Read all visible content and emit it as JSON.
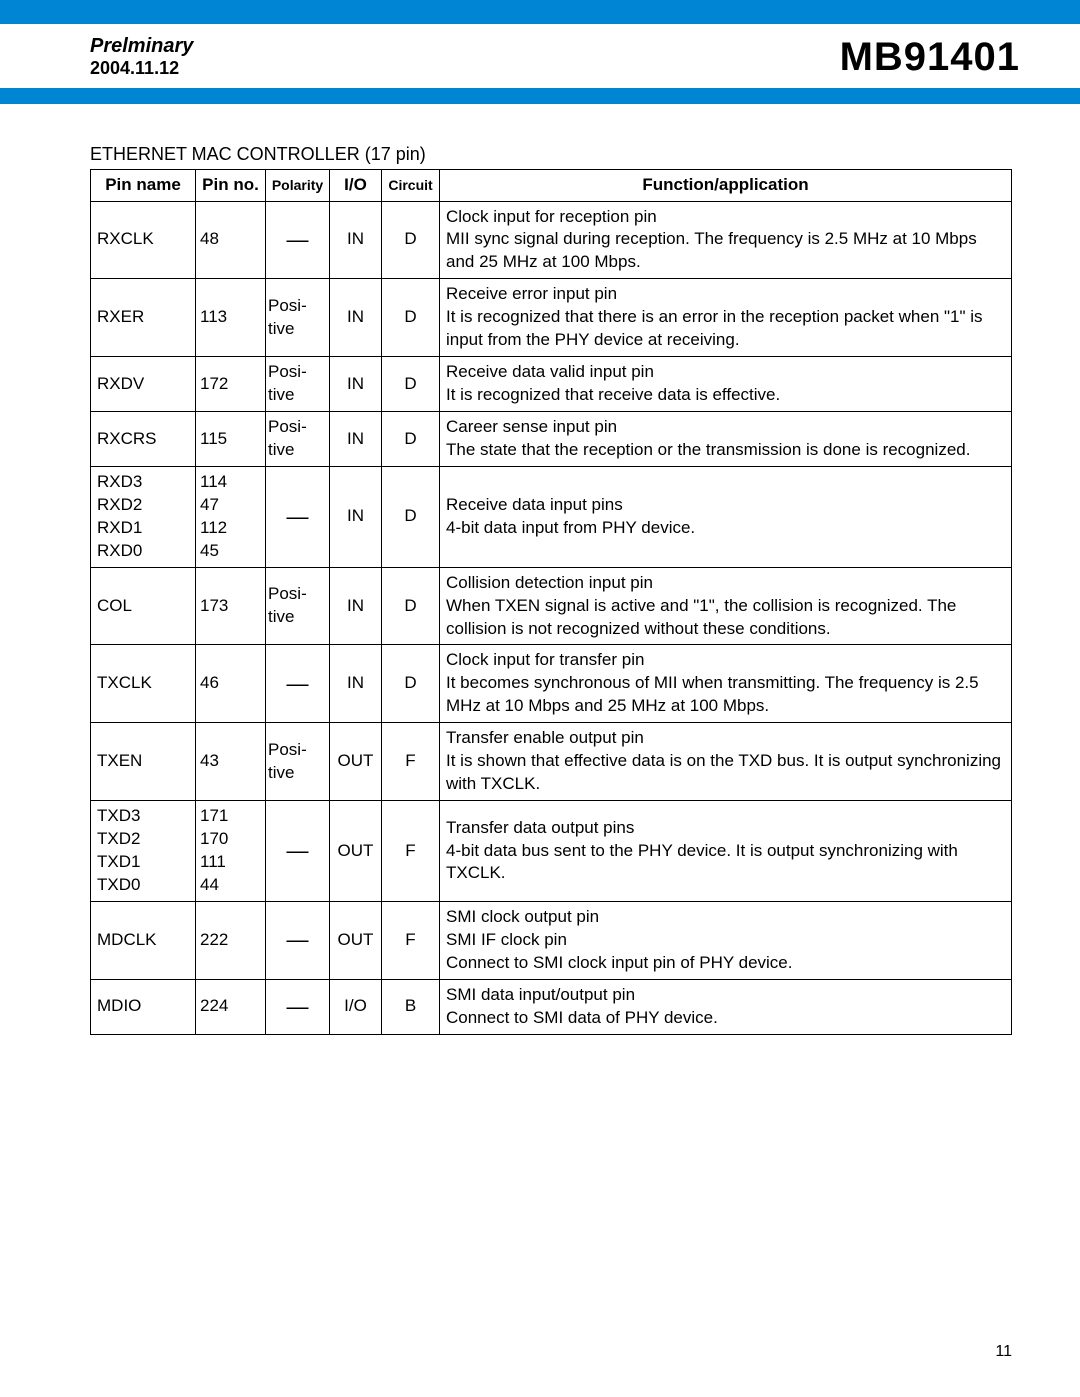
{
  "header": {
    "preliminary": "Prelminary",
    "date": "2004.11.12",
    "part_number": "MB91401"
  },
  "colors": {
    "brand_blue": "#0085d5",
    "border": "#000000",
    "background": "#ffffff",
    "text": "#000000"
  },
  "table": {
    "title": "ETHERNET MAC CONTROLLER (17 pin)",
    "columns": {
      "pin_name": "Pin name",
      "pin_no": "Pin no.",
      "polarity": "Polarity",
      "io": "I/O",
      "circuit": "Circuit",
      "function": "Function/application"
    },
    "dash": "—",
    "rows": [
      {
        "pin_name": "RXCLK",
        "pin_no": "48",
        "polarity": "—",
        "polarity_is_dash": true,
        "io": "IN",
        "circuit": "D",
        "function": "Clock input for reception pin\nMII sync signal during reception. The frequency is 2.5 MHz at 10 Mbps and 25 MHz at 100 Mbps."
      },
      {
        "pin_name": "RXER",
        "pin_no": "113",
        "polarity": "Posi-\ntive",
        "polarity_is_dash": false,
        "io": "IN",
        "circuit": "D",
        "function": "Receive error input pin\nIt is recognized that there is an error in the reception packet when \"1\" is input from the PHY device at receiving."
      },
      {
        "pin_name": "RXDV",
        "pin_no": "172",
        "polarity": "Posi-\ntive",
        "polarity_is_dash": false,
        "io": "IN",
        "circuit": "D",
        "function": "Receive data valid input pin\nIt is recognized that receive data is effective."
      },
      {
        "pin_name": "RXCRS",
        "pin_no": "115",
        "polarity": "Posi-\ntive",
        "polarity_is_dash": false,
        "io": "IN",
        "circuit": "D",
        "function": "Career sense input pin\nThe state that the reception or the transmission is done is recognized."
      },
      {
        "pin_name": "RXD3\nRXD2\nRXD1\nRXD0",
        "pin_no": "114\n47\n112\n45",
        "polarity": "—",
        "polarity_is_dash": true,
        "io": "IN",
        "circuit": "D",
        "function": "Receive data input pins\n4-bit data input from PHY device."
      },
      {
        "pin_name": "COL",
        "pin_no": "173",
        "polarity": "Posi-\ntive",
        "polarity_is_dash": false,
        "io": "IN",
        "circuit": "D",
        "function": "Collision detection input pin\nWhen TXEN signal is active and \"1\", the collision is recognized. The collision is not recognized without these conditions."
      },
      {
        "pin_name": "TXCLK",
        "pin_no": "46",
        "polarity": "—",
        "polarity_is_dash": true,
        "io": "IN",
        "circuit": "D",
        "function": "Clock input for transfer pin\nIt becomes synchronous of MII when transmitting. The frequency is 2.5 MHz at 10 Mbps and 25 MHz at 100 Mbps."
      },
      {
        "pin_name": "TXEN",
        "pin_no": "43",
        "polarity": "Posi-\ntive",
        "polarity_is_dash": false,
        "io": "OUT",
        "circuit": "F",
        "function": "Transfer enable output pin\nIt is shown that effective data is on the TXD bus. It is output synchronizing with TXCLK."
      },
      {
        "pin_name": "TXD3\nTXD2\nTXD1\nTXD0",
        "pin_no": "171\n170\n111\n44",
        "polarity": "—",
        "polarity_is_dash": true,
        "io": "OUT",
        "circuit": "F",
        "function": "Transfer data output pins\n4-bit data bus sent to the PHY device. It is output synchronizing with TXCLK."
      },
      {
        "pin_name": "MDCLK",
        "pin_no": "222",
        "polarity": "—",
        "polarity_is_dash": true,
        "io": "OUT",
        "circuit": "F",
        "function": "SMI clock output pin\nSMI IF clock pin\nConnect to SMI clock input pin of PHY device."
      },
      {
        "pin_name": "MDIO",
        "pin_no": "224",
        "polarity": "—",
        "polarity_is_dash": true,
        "io": "I/O",
        "circuit": "B",
        "function": "SMI data input/output pin\nConnect to SMI data of PHY device."
      }
    ]
  },
  "page_number": "11"
}
